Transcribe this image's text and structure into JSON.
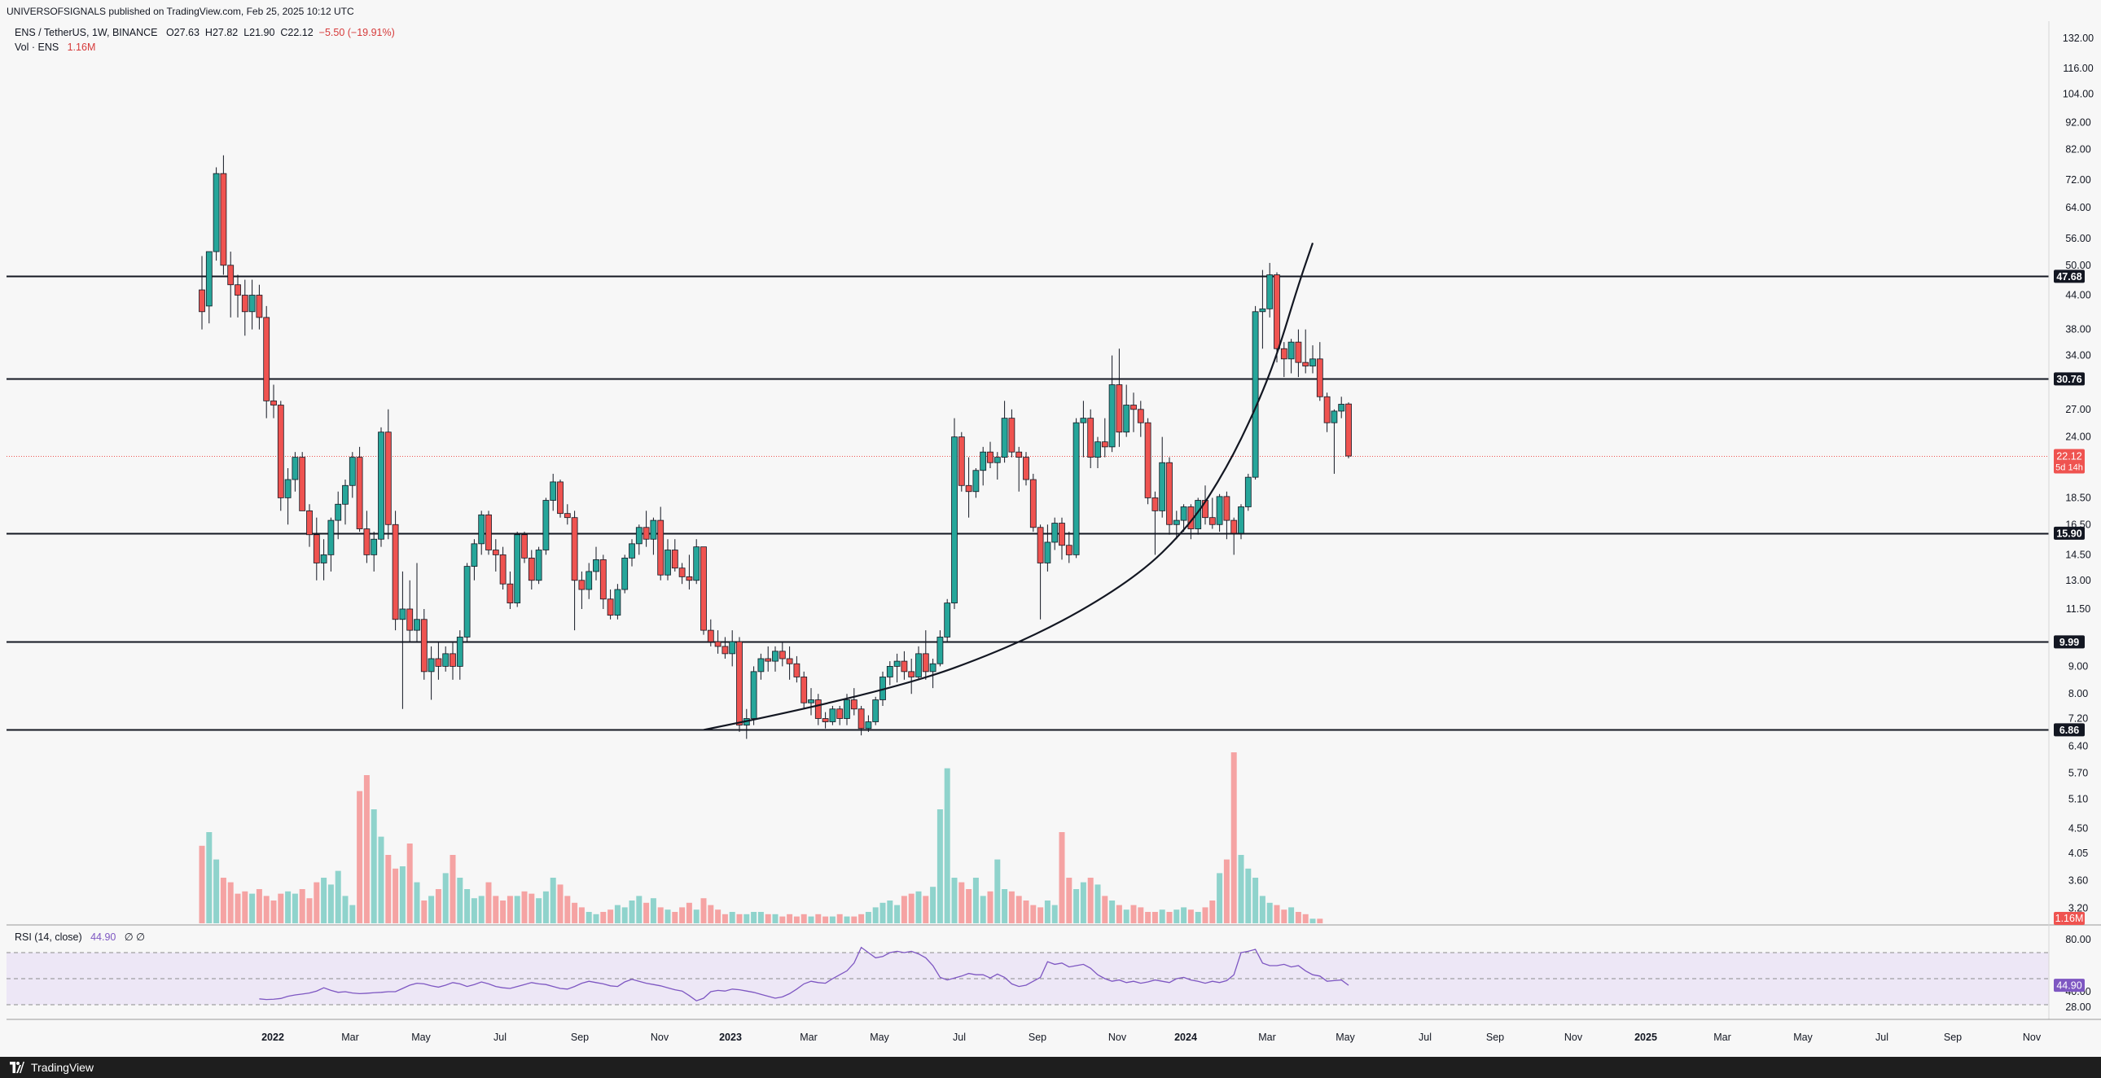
{
  "header": {
    "published": "UNIVERSOFSIGNALS published on TradingView.com, Feb 25, 2025 10:12 UTC",
    "symbol": "ENS / TetherUS, 1W, BINANCE",
    "ohlc_open": "O27.63",
    "ohlc_high": "H27.82",
    "ohlc_low": "L21.90",
    "ohlc_close": "C22.12",
    "change": "−5.50 (−19.91%)",
    "volume_label": "Vol · ENS",
    "volume_value": "1.16M"
  },
  "rsi_legend": {
    "label": "RSI (14, close)",
    "value": "44.90",
    "extra": "∅ ∅"
  },
  "footer": {
    "brand": "TradingView"
  },
  "colors": {
    "up": "#26a69a",
    "down": "#ef5350",
    "up_volume": "#8fd3cc",
    "down_volume": "#f5a3a3",
    "rsi_line": "#7e57c2",
    "rsi_band": "#ede7f6",
    "support_line": "#131722"
  },
  "chart_data": {
    "type": "candlestick",
    "title": "ENS / TetherUS, 1W, BINANCE",
    "price_scale": "log",
    "price_axis_ticks": [
      "132.00",
      "116.00",
      "104.00",
      "92.00",
      "82.00",
      "72.00",
      "64.00",
      "56.00",
      "50.00",
      "44.00",
      "38.00",
      "34.00",
      "27.00",
      "24.00",
      "18.50",
      "16.50",
      "14.50",
      "13.00",
      "11.50",
      "9.00",
      "8.00",
      "7.20",
      "6.40",
      "5.70",
      "5.10",
      "4.50",
      "4.05",
      "3.60",
      "3.20"
    ],
    "time_axis_ticks": [
      "2022",
      "Mar",
      "May",
      "Jul",
      "Sep",
      "Nov",
      "2023",
      "Mar",
      "May",
      "Jul",
      "Sep",
      "Nov",
      "2024",
      "Mar",
      "May",
      "Jul",
      "Sep",
      "Nov",
      "2025",
      "Mar",
      "May",
      "Jul",
      "Sep",
      "Nov"
    ],
    "horizontal_levels": [
      {
        "value": 47.68,
        "label": "47.68"
      },
      {
        "value": 30.76,
        "label": "30.76"
      },
      {
        "value": 15.9,
        "label": "15.90"
      },
      {
        "value": 9.99,
        "label": "9.99"
      },
      {
        "value": 6.86,
        "label": "6.86"
      }
    ],
    "last_price": {
      "value": 22.12,
      "label": "22.12",
      "countdown": "5d 14h"
    },
    "volume_last_label": "1.16M",
    "rsi": {
      "ticks": [
        "80.00",
        "40.00",
        "28.00"
      ],
      "upper": 70,
      "middle": 50,
      "lower": 30,
      "last": 44.9,
      "last_label": "44.90"
    },
    "curve_points": [
      [
        -5,
        6.86
      ],
      [
        20,
        8.0
      ],
      [
        40,
        10.0
      ],
      [
        55,
        13.0
      ],
      [
        63,
        16.5
      ],
      [
        68,
        21.0
      ],
      [
        72,
        27.0
      ],
      [
        75,
        34.0
      ],
      [
        78,
        46.0
      ],
      [
        80,
        55.0
      ]
    ],
    "ohlc": [
      [
        45.0,
        52.0,
        38.0,
        41.0
      ],
      [
        42.0,
        53.0,
        39.0,
        53.0
      ],
      [
        53.0,
        76.0,
        51.0,
        74.0
      ],
      [
        74.0,
        80.0,
        48.0,
        50.0
      ],
      [
        50.0,
        53.0,
        40.0,
        46.0
      ],
      [
        46.0,
        48.0,
        40.0,
        44.0
      ],
      [
        44.0,
        47.0,
        37.0,
        41.0
      ],
      [
        41.0,
        47.0,
        38.0,
        44.0
      ],
      [
        44.0,
        46.0,
        38.0,
        40.0
      ],
      [
        40.0,
        42.0,
        26.0,
        28.0
      ],
      [
        28.0,
        30.0,
        26.0,
        27.5
      ],
      [
        27.5,
        28.0,
        17.5,
        18.5
      ],
      [
        18.5,
        21.0,
        16.5,
        20.0
      ],
      [
        20.0,
        22.5,
        19.0,
        22.0
      ],
      [
        22.0,
        22.5,
        17.5,
        17.5
      ],
      [
        17.5,
        18.0,
        15.0,
        15.8
      ],
      [
        15.8,
        17.0,
        13.0,
        14.0
      ],
      [
        14.0,
        15.5,
        13.0,
        14.5
      ],
      [
        14.5,
        17.0,
        13.5,
        16.8
      ],
      [
        16.8,
        19.0,
        15.5,
        18.0
      ],
      [
        18.0,
        20.0,
        16.5,
        19.5
      ],
      [
        19.5,
        22.5,
        18.5,
        22.0
      ],
      [
        22.0,
        23.0,
        16.0,
        16.2
      ],
      [
        16.2,
        17.5,
        14.0,
        14.5
      ],
      [
        14.5,
        16.0,
        13.5,
        15.5
      ],
      [
        15.5,
        25.0,
        15.0,
        24.5
      ],
      [
        24.5,
        27.0,
        15.5,
        16.5
      ],
      [
        16.5,
        17.5,
        10.5,
        11.0
      ],
      [
        11.0,
        13.5,
        7.5,
        11.5
      ],
      [
        11.5,
        13.0,
        10.0,
        10.5
      ],
      [
        10.5,
        14.0,
        10.0,
        11.0
      ],
      [
        11.0,
        11.5,
        8.5,
        8.8
      ],
      [
        8.8,
        9.8,
        7.8,
        9.3
      ],
      [
        9.3,
        10.0,
        8.5,
        9.0
      ],
      [
        9.0,
        9.8,
        8.8,
        9.5
      ],
      [
        9.5,
        10.0,
        8.5,
        9.0
      ],
      [
        9.0,
        10.5,
        8.5,
        10.2
      ],
      [
        10.2,
        14.0,
        10.0,
        13.8
      ],
      [
        13.8,
        15.5,
        13.0,
        15.2
      ],
      [
        15.2,
        17.5,
        14.5,
        17.2
      ],
      [
        17.2,
        17.5,
        14.5,
        14.8
      ],
      [
        14.8,
        15.5,
        13.5,
        14.5
      ],
      [
        14.5,
        15.0,
        12.5,
        12.8
      ],
      [
        12.8,
        13.5,
        11.5,
        11.8
      ],
      [
        11.8,
        16.0,
        11.6,
        15.8
      ],
      [
        15.8,
        16.0,
        14.0,
        14.3
      ],
      [
        14.3,
        14.8,
        12.5,
        13.0
      ],
      [
        13.0,
        15.0,
        12.8,
        14.8
      ],
      [
        14.8,
        18.5,
        14.5,
        18.3
      ],
      [
        18.3,
        20.5,
        17.5,
        19.8
      ],
      [
        19.8,
        20.0,
        17.0,
        17.3
      ],
      [
        17.3,
        18.0,
        16.5,
        17.0
      ],
      [
        17.0,
        17.5,
        10.5,
        13.0
      ],
      [
        13.0,
        13.5,
        11.5,
        12.5
      ],
      [
        12.5,
        14.0,
        12.0,
        13.5
      ],
      [
        13.5,
        15.0,
        13.0,
        14.2
      ],
      [
        14.2,
        14.5,
        11.5,
        12.0
      ],
      [
        12.0,
        12.5,
        11.0,
        11.2
      ],
      [
        11.2,
        12.8,
        11.0,
        12.5
      ],
      [
        12.5,
        14.5,
        12.3,
        14.3
      ],
      [
        14.3,
        15.5,
        13.8,
        15.2
      ],
      [
        15.2,
        16.5,
        14.5,
        16.3
      ],
      [
        16.3,
        17.5,
        15.0,
        15.5
      ],
      [
        15.5,
        17.0,
        14.5,
        16.8
      ],
      [
        16.8,
        17.8,
        13.0,
        13.3
      ],
      [
        13.3,
        15.5,
        13.0,
        14.8
      ],
      [
        14.8,
        15.5,
        13.5,
        13.7
      ],
      [
        13.7,
        14.0,
        12.8,
        13.2
      ],
      [
        13.2,
        14.5,
        12.5,
        13.0
      ],
      [
        13.0,
        15.5,
        12.8,
        15.0
      ],
      [
        15.0,
        15.0,
        10.3,
        10.5
      ],
      [
        10.5,
        11.0,
        9.8,
        10.0
      ],
      [
        10.0,
        10.5,
        9.5,
        9.8
      ],
      [
        9.8,
        10.2,
        9.3,
        9.5
      ],
      [
        9.5,
        10.5,
        9.0,
        10.0
      ],
      [
        10.0,
        10.2,
        6.8,
        7.0
      ],
      [
        7.0,
        7.5,
        6.6,
        7.2
      ],
      [
        7.2,
        9.0,
        7.0,
        8.8
      ],
      [
        8.8,
        9.5,
        8.5,
        9.3
      ],
      [
        9.3,
        9.8,
        8.8,
        9.2
      ],
      [
        9.2,
        9.8,
        8.8,
        9.6
      ],
      [
        9.6,
        10.0,
        9.0,
        9.3
      ],
      [
        9.3,
        9.8,
        8.5,
        9.1
      ],
      [
        9.1,
        9.4,
        8.4,
        8.6
      ],
      [
        8.6,
        8.8,
        7.5,
        7.7
      ],
      [
        7.7,
        8.2,
        7.3,
        7.8
      ],
      [
        7.8,
        8.0,
        7.0,
        7.2
      ],
      [
        7.2,
        7.4,
        6.9,
        7.1
      ],
      [
        7.1,
        7.6,
        7.0,
        7.5
      ],
      [
        7.5,
        7.6,
        7.0,
        7.2
      ],
      [
        7.2,
        8.0,
        7.0,
        7.8
      ],
      [
        7.8,
        8.2,
        7.3,
        7.5
      ],
      [
        7.5,
        7.6,
        6.7,
        6.9
      ],
      [
        6.9,
        7.3,
        6.8,
        7.1
      ],
      [
        7.1,
        7.9,
        7.0,
        7.8
      ],
      [
        7.8,
        8.8,
        7.6,
        8.6
      ],
      [
        8.6,
        9.2,
        8.3,
        9.0
      ],
      [
        9.0,
        9.5,
        8.4,
        9.2
      ],
      [
        9.2,
        9.6,
        8.5,
        8.8
      ],
      [
        8.8,
        9.3,
        8.0,
        8.6
      ],
      [
        8.6,
        9.8,
        8.5,
        9.5
      ],
      [
        9.5,
        10.5,
        8.5,
        8.8
      ],
      [
        8.8,
        9.3,
        8.2,
        9.1
      ],
      [
        9.1,
        10.5,
        9.0,
        10.2
      ],
      [
        10.2,
        12.0,
        10.0,
        11.8
      ],
      [
        11.8,
        26.0,
        11.5,
        24.0
      ],
      [
        24.0,
        24.5,
        19.0,
        19.5
      ],
      [
        19.5,
        22.0,
        17.0,
        19.0
      ],
      [
        19.0,
        21.0,
        18.5,
        20.8
      ],
      [
        20.8,
        23.0,
        19.5,
        22.5
      ],
      [
        22.5,
        23.5,
        21.0,
        21.5
      ],
      [
        21.5,
        22.5,
        20.0,
        22.0
      ],
      [
        22.0,
        28.0,
        21.5,
        26.0
      ],
      [
        26.0,
        27.0,
        22.0,
        22.5
      ],
      [
        22.5,
        23.0,
        19.0,
        22.0
      ],
      [
        22.0,
        22.5,
        19.5,
        20.0
      ],
      [
        20.0,
        20.5,
        16.0,
        16.3
      ],
      [
        16.3,
        16.5,
        11.0,
        14.0
      ],
      [
        14.0,
        16.5,
        13.5,
        15.3
      ],
      [
        15.3,
        17.0,
        14.8,
        16.6
      ],
      [
        16.6,
        17.0,
        14.2,
        15.1
      ],
      [
        15.1,
        16.0,
        14.0,
        14.5
      ],
      [
        14.5,
        26.0,
        14.3,
        25.5
      ],
      [
        25.5,
        28.0,
        22.0,
        26.0
      ],
      [
        26.0,
        27.0,
        21.0,
        22.0
      ],
      [
        22.0,
        24.0,
        21.0,
        23.5
      ],
      [
        23.5,
        26.0,
        22.0,
        23.0
      ],
      [
        23.0,
        34.0,
        22.5,
        30.0
      ],
      [
        30.0,
        35.0,
        23.0,
        24.5
      ],
      [
        24.5,
        30.0,
        24.0,
        27.5
      ],
      [
        27.5,
        29.0,
        24.5,
        27.0
      ],
      [
        27.0,
        28.0,
        24.0,
        25.5
      ],
      [
        25.5,
        26.0,
        18.0,
        18.5
      ],
      [
        18.5,
        19.0,
        14.5,
        17.5
      ],
      [
        17.5,
        24.0,
        17.0,
        21.5
      ],
      [
        21.5,
        22.0,
        15.8,
        16.5
      ],
      [
        16.5,
        17.5,
        15.5,
        16.8
      ],
      [
        16.8,
        18.0,
        16.0,
        17.8
      ],
      [
        17.8,
        18.0,
        15.5,
        16.2
      ],
      [
        16.2,
        18.5,
        15.8,
        18.3
      ],
      [
        18.3,
        19.5,
        16.5,
        17.0
      ],
      [
        17.0,
        18.5,
        16.2,
        16.5
      ],
      [
        16.5,
        18.8,
        16.0,
        18.6
      ],
      [
        18.6,
        19.0,
        15.5,
        16.8
      ],
      [
        16.8,
        17.0,
        14.5,
        15.9
      ],
      [
        15.9,
        18.0,
        15.5,
        17.8
      ],
      [
        17.8,
        20.5,
        17.5,
        20.2
      ],
      [
        20.2,
        42.0,
        20.0,
        41.0
      ],
      [
        41.0,
        49.0,
        35.0,
        41.5
      ],
      [
        41.5,
        50.5,
        40.0,
        48.0
      ],
      [
        48.0,
        48.5,
        33.0,
        35.0
      ],
      [
        35.0,
        36.0,
        31.0,
        33.5
      ],
      [
        33.5,
        36.5,
        31.5,
        36.0
      ],
      [
        36.0,
        38.0,
        31.0,
        33.0
      ],
      [
        33.0,
        38.0,
        31.5,
        32.5
      ],
      [
        32.5,
        35.5,
        31.5,
        33.5
      ],
      [
        33.5,
        36.0,
        28.0,
        28.5
      ],
      [
        28.5,
        29.0,
        24.5,
        25.5
      ],
      [
        25.5,
        27.0,
        20.5,
        26.8
      ],
      [
        26.8,
        28.5,
        26.0,
        27.6
      ],
      [
        27.63,
        27.82,
        21.9,
        22.12
      ]
    ],
    "volume_relative": [
      0.34,
      0.4,
      0.28,
      0.2,
      0.18,
      0.13,
      0.14,
      0.13,
      0.15,
      0.12,
      0.1,
      0.13,
      0.14,
      0.13,
      0.15,
      0.11,
      0.18,
      0.2,
      0.17,
      0.23,
      0.12,
      0.08,
      0.58,
      0.65,
      0.5,
      0.38,
      0.3,
      0.24,
      0.25,
      0.35,
      0.18,
      0.1,
      0.12,
      0.15,
      0.22,
      0.3,
      0.2,
      0.15,
      0.11,
      0.12,
      0.18,
      0.12,
      0.1,
      0.12,
      0.12,
      0.14,
      0.13,
      0.11,
      0.14,
      0.2,
      0.17,
      0.12,
      0.09,
      0.07,
      0.05,
      0.04,
      0.05,
      0.06,
      0.08,
      0.07,
      0.1,
      0.12,
      0.09,
      0.11,
      0.07,
      0.06,
      0.05,
      0.07,
      0.09,
      0.06,
      0.11,
      0.08,
      0.06,
      0.04,
      0.05,
      0.04,
      0.04,
      0.05,
      0.05,
      0.04,
      0.04,
      0.03,
      0.04,
      0.03,
      0.04,
      0.03,
      0.04,
      0.03,
      0.03,
      0.04,
      0.03,
      0.03,
      0.04,
      0.05,
      0.07,
      0.09,
      0.1,
      0.08,
      0.12,
      0.13,
      0.14,
      0.12,
      0.16,
      0.5,
      0.68,
      0.2,
      0.18,
      0.15,
      0.2,
      0.12,
      0.14,
      0.28,
      0.15,
      0.14,
      0.12,
      0.1,
      0.08,
      0.07,
      0.1,
      0.08,
      0.4,
      0.2,
      0.15,
      0.18,
      0.2,
      0.17,
      0.12,
      0.1,
      0.08,
      0.06,
      0.08,
      0.07,
      0.05,
      0.05,
      0.06,
      0.05,
      0.06,
      0.07,
      0.06,
      0.05,
      0.07,
      0.1,
      0.22,
      0.28,
      0.75,
      0.3,
      0.24,
      0.2,
      0.12,
      0.09,
      0.08,
      0.06,
      0.07,
      0.05,
      0.04,
      0.02,
      0.02
    ],
    "rsi_values": [
      34.5,
      34.0,
      34.2,
      34.8,
      36.5,
      37.5,
      38.2,
      39.0,
      40.5,
      43.0,
      41.0,
      39.5,
      40.0,
      39.0,
      38.5,
      38.8,
      39.2,
      39.5,
      40.0,
      40.0,
      42.5,
      45.0,
      46.5,
      46.0,
      44.5,
      43.5,
      45.0,
      47.0,
      46.0,
      44.0,
      45.5,
      47.5,
      46.0,
      44.0,
      43.0,
      42.5,
      44.0,
      45.5,
      47.0,
      46.0,
      45.5,
      44.0,
      42.5,
      42.0,
      44.0,
      46.5,
      48.0,
      47.0,
      46.0,
      44.5,
      44.0,
      47.5,
      49.5,
      48.0,
      46.5,
      45.5,
      44.5,
      43.0,
      41.5,
      40.5,
      37.0,
      33.0,
      35.0,
      40.0,
      41.0,
      40.5,
      42.0,
      41.5,
      40.5,
      39.5,
      38.0,
      36.5,
      35.0,
      36.0,
      38.5,
      42.0,
      46.0,
      48.0,
      47.0,
      46.5,
      50.0,
      53.0,
      56.0,
      62.0,
      74.0,
      70.0,
      66.0,
      67.0,
      70.0,
      71.0,
      70.0,
      71.0,
      69.0,
      66.0,
      60.0,
      51.0,
      49.0,
      50.5,
      52.0,
      54.0,
      53.0,
      53.0,
      50.5,
      53.5,
      51.0,
      46.0,
      44.0,
      45.0,
      48.0,
      51.0,
      63.0,
      61.0,
      62.0,
      59.0,
      60.0,
      61.0,
      58.0,
      53.0,
      50.0,
      48.0,
      49.0,
      47.0,
      48.0,
      46.5,
      47.5,
      49.0,
      48.0,
      47.0,
      50.0,
      51.0,
      49.0,
      48.0,
      46.5,
      48.0,
      47.0,
      48.5,
      53.0,
      70.0,
      71.0,
      72.5,
      62.0,
      60.0,
      60.0,
      61.0,
      59.0,
      60.0,
      56.0,
      53.0,
      52.0,
      48.0,
      48.5,
      49.0,
      44.9
    ]
  }
}
